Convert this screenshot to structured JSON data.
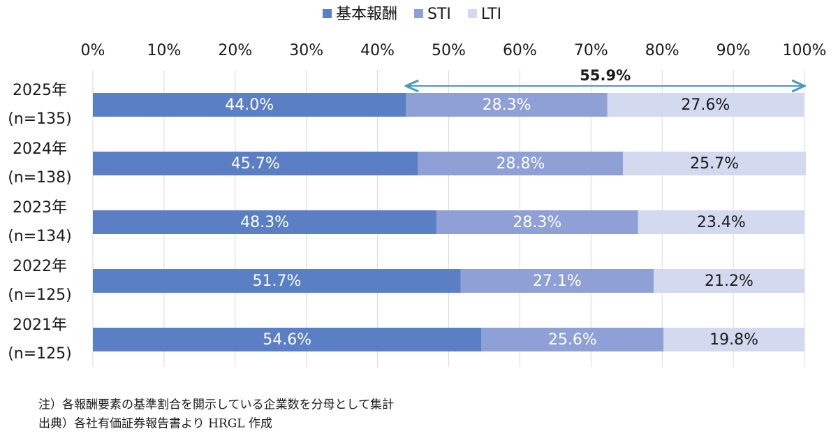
{
  "chart_data": {
    "type": "stacked-barh",
    "categories": [
      [
        "2025年",
        "(n=135)"
      ],
      [
        "2024年",
        "(n=138)"
      ],
      [
        "2023年",
        "(n=134)"
      ],
      [
        "2022年",
        "(n=125)"
      ],
      [
        "2021年",
        "(n=125)"
      ]
    ],
    "series": [
      {
        "name": "基本報酬",
        "color": "#5b7fc4",
        "label_color": "#ffffff",
        "values": [
          44.0,
          45.7,
          48.3,
          51.7,
          54.6
        ],
        "value_labels": [
          "44.0%",
          "45.7%",
          "48.3%",
          "51.7%",
          "54.6%"
        ]
      },
      {
        "name": "STI",
        "color": "#8ea0d6",
        "label_color": "#ffffff",
        "values": [
          28.3,
          28.8,
          28.3,
          27.1,
          25.6
        ],
        "value_labels": [
          "28.3%",
          "28.8%",
          "28.3%",
          "27.1%",
          "25.6%"
        ]
      },
      {
        "name": "LTI",
        "color": "#d3d9ee",
        "label_color": "#1a1a1a",
        "values": [
          27.6,
          25.7,
          23.4,
          21.2,
          19.8
        ],
        "value_labels": [
          "27.6%",
          "25.7%",
          "23.4%",
          "21.2%",
          "19.8%"
        ]
      }
    ],
    "xlim": [
      0,
      100
    ],
    "xticks": [
      {
        "value": 0,
        "label": "0%"
      },
      {
        "value": 10,
        "label": "10%"
      },
      {
        "value": 20,
        "label": "20%"
      },
      {
        "value": 30,
        "label": "30%"
      },
      {
        "value": 40,
        "label": "40%"
      },
      {
        "value": 50,
        "label": "50%"
      },
      {
        "value": 60,
        "label": "60%"
      },
      {
        "value": 70,
        "label": "70%"
      },
      {
        "value": 80,
        "label": "80%"
      },
      {
        "value": 90,
        "label": "90%"
      },
      {
        "value": 100,
        "label": "100%"
      }
    ],
    "grid": true,
    "legend": "top",
    "annotation": {
      "text": "55.9%",
      "range": [
        44.0,
        100
      ]
    },
    "notes": [
      "注）各報酬要素の基準割合を開示している企業数を分母として集計",
      "出典）各社有価証券報告書より HRGL 作成"
    ]
  }
}
